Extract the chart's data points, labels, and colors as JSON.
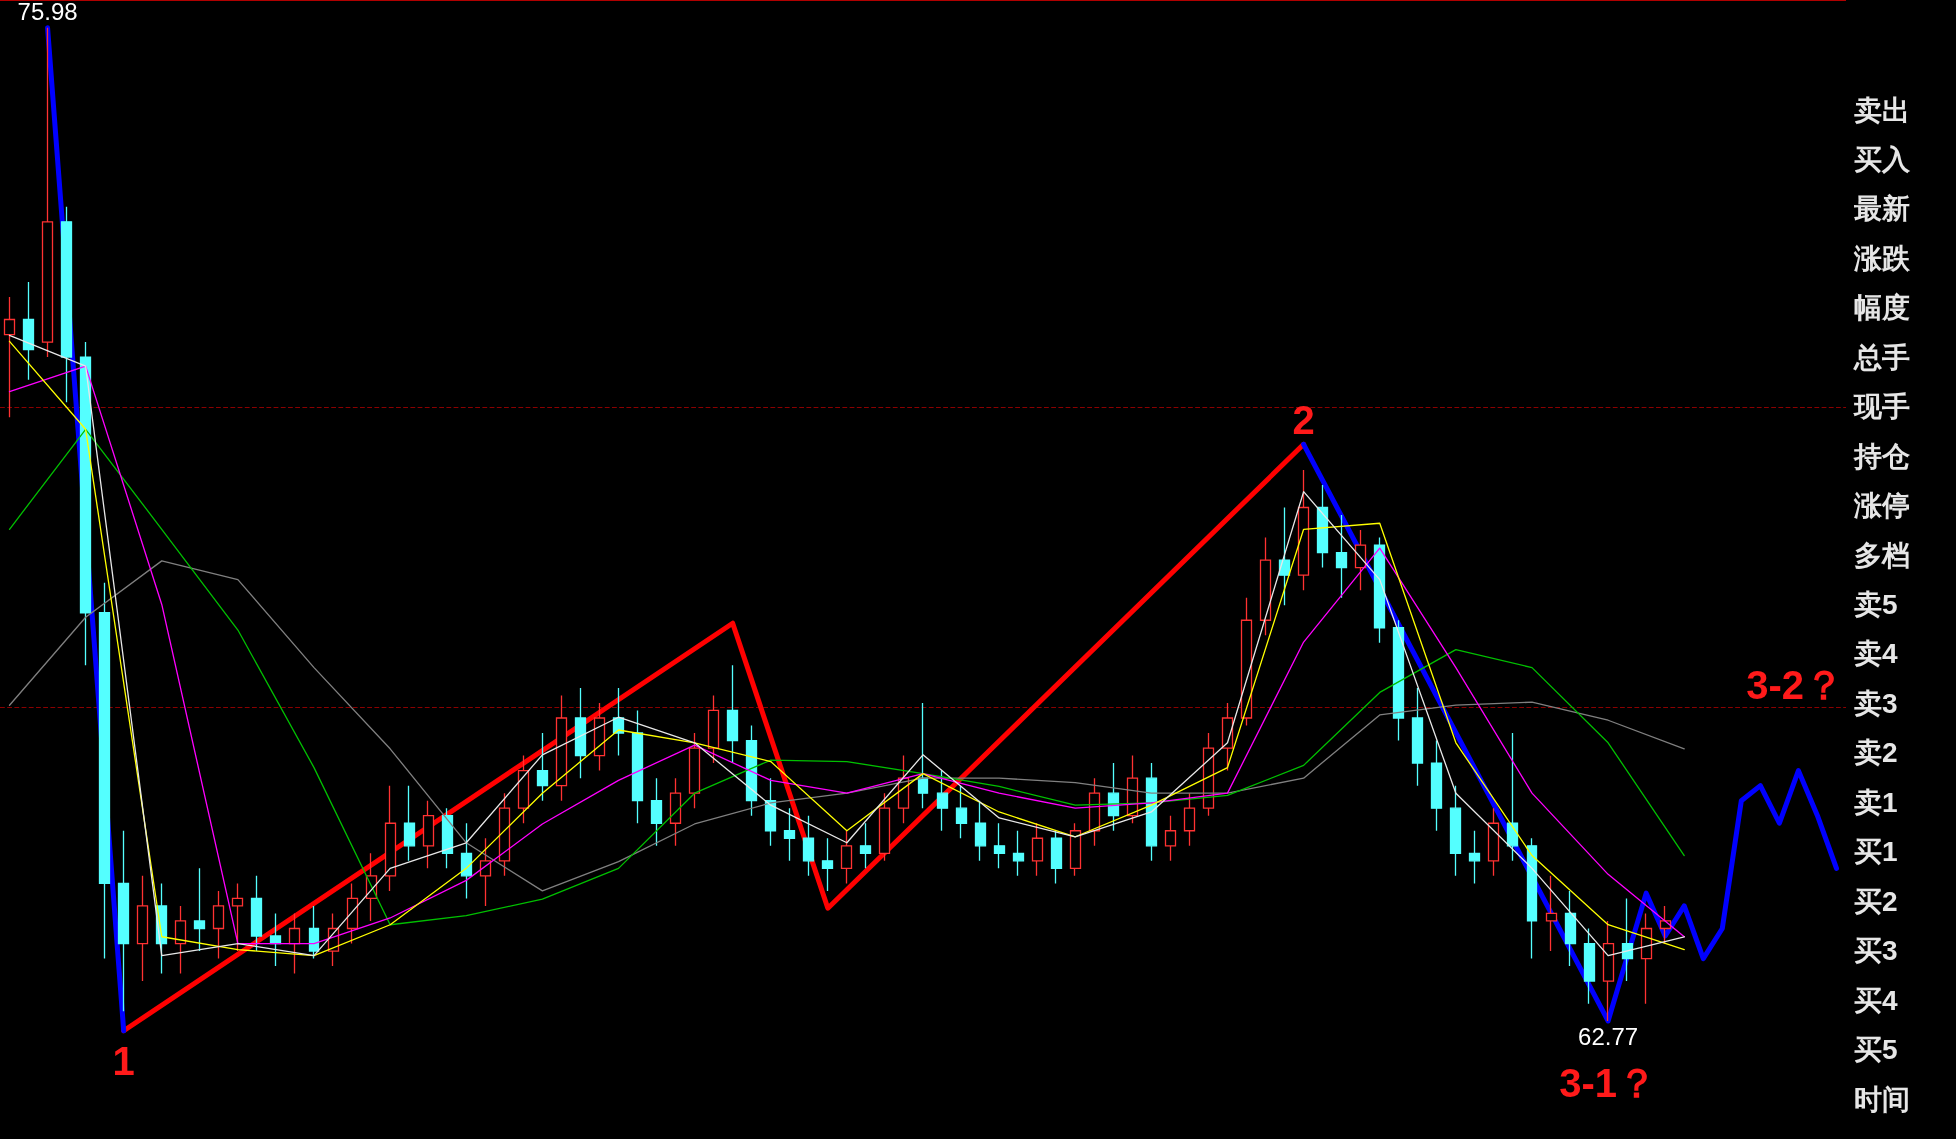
{
  "chart_data": {
    "type": "candlestick",
    "ylim": [
      61.2,
      76.35
    ],
    "tick_labels": false,
    "categories": [
      null,
      null,
      null,
      null,
      null,
      null,
      null,
      null,
      null,
      null,
      null,
      null,
      null,
      null,
      null,
      null,
      null,
      null,
      null,
      null,
      null,
      null,
      null,
      null,
      null,
      null,
      null,
      null,
      null,
      null,
      null,
      null,
      null,
      null,
      null,
      null,
      null,
      null,
      null,
      null,
      null,
      null,
      null,
      null,
      null,
      null,
      null,
      null,
      null,
      null,
      null,
      null,
      null,
      null,
      null,
      null,
      null,
      null,
      null,
      null,
      null,
      null,
      null,
      null,
      null,
      null,
      null,
      null,
      null,
      null,
      null,
      null,
      null,
      null,
      null,
      null,
      null,
      null,
      null,
      null,
      null,
      null,
      null,
      null,
      null,
      null,
      null,
      null,
      null,
      null,
      null,
      null,
      null,
      null,
      null,
      null,
      null
    ],
    "ohlc": [
      [
        71.9,
        72.4,
        70.8,
        72.1
      ],
      [
        72.1,
        72.6,
        71.3,
        71.7
      ],
      [
        71.8,
        75.98,
        71.6,
        73.4
      ],
      [
        73.4,
        73.6,
        71.0,
        71.6
      ],
      [
        71.6,
        71.8,
        67.5,
        68.2
      ],
      [
        68.2,
        68.6,
        63.6,
        64.6
      ],
      [
        64.6,
        65.3,
        62.9,
        63.8
      ],
      [
        63.8,
        64.7,
        63.3,
        64.3
      ],
      [
        64.3,
        64.6,
        63.4,
        63.8
      ],
      [
        63.8,
        64.3,
        63.4,
        64.1
      ],
      [
        64.1,
        64.8,
        63.7,
        64.0
      ],
      [
        64.0,
        64.5,
        63.6,
        64.3
      ],
      [
        64.3,
        64.6,
        63.7,
        64.4
      ],
      [
        64.4,
        64.7,
        63.7,
        63.9
      ],
      [
        63.9,
        64.2,
        63.5,
        63.8
      ],
      [
        63.8,
        64.2,
        63.4,
        64.0
      ],
      [
        64.0,
        64.3,
        63.6,
        63.7
      ],
      [
        63.7,
        64.2,
        63.5,
        64.0
      ],
      [
        64.0,
        64.6,
        63.8,
        64.4
      ],
      [
        64.4,
        65.0,
        64.1,
        64.7
      ],
      [
        64.7,
        65.9,
        64.5,
        65.4
      ],
      [
        65.4,
        65.9,
        64.9,
        65.1
      ],
      [
        65.1,
        65.7,
        64.8,
        65.5
      ],
      [
        65.5,
        65.6,
        64.8,
        65.0
      ],
      [
        65.0,
        65.4,
        64.4,
        64.7
      ],
      [
        64.7,
        65.2,
        64.3,
        64.9
      ],
      [
        64.9,
        65.8,
        64.7,
        65.6
      ],
      [
        65.6,
        66.3,
        65.4,
        66.1
      ],
      [
        66.1,
        66.6,
        65.7,
        65.9
      ],
      [
        65.9,
        67.1,
        65.7,
        66.8
      ],
      [
        66.8,
        67.2,
        66.0,
        66.3
      ],
      [
        66.3,
        67.0,
        66.1,
        66.8
      ],
      [
        66.8,
        67.2,
        66.3,
        66.6
      ],
      [
        66.6,
        66.9,
        65.4,
        65.7
      ],
      [
        65.7,
        66.0,
        65.1,
        65.4
      ],
      [
        65.4,
        66.0,
        65.1,
        65.8
      ],
      [
        65.8,
        66.6,
        65.6,
        66.4
      ],
      [
        66.4,
        67.1,
        66.2,
        66.9
      ],
      [
        66.9,
        67.5,
        66.2,
        66.5
      ],
      [
        66.5,
        66.7,
        65.5,
        65.7
      ],
      [
        65.7,
        66.0,
        65.1,
        65.3
      ],
      [
        65.3,
        65.6,
        64.9,
        65.2
      ],
      [
        65.2,
        65.5,
        64.7,
        64.9
      ],
      [
        64.9,
        65.2,
        64.5,
        64.8
      ],
      [
        64.8,
        65.3,
        64.6,
        65.1
      ],
      [
        65.1,
        65.4,
        64.8,
        65.0
      ],
      [
        65.0,
        65.8,
        64.9,
        65.6
      ],
      [
        65.6,
        66.3,
        65.4,
        66.0
      ],
      [
        66.0,
        67.0,
        65.6,
        65.8
      ],
      [
        65.8,
        66.1,
        65.3,
        65.6
      ],
      [
        65.6,
        65.9,
        65.2,
        65.4
      ],
      [
        65.4,
        65.7,
        64.9,
        65.1
      ],
      [
        65.1,
        65.4,
        64.8,
        65.0
      ],
      [
        65.0,
        65.3,
        64.7,
        64.9
      ],
      [
        64.9,
        65.4,
        64.7,
        65.2
      ],
      [
        65.2,
        65.3,
        64.6,
        64.8
      ],
      [
        64.8,
        65.4,
        64.7,
        65.3
      ],
      [
        65.3,
        66.0,
        65.1,
        65.8
      ],
      [
        65.8,
        66.2,
        65.3,
        65.5
      ],
      [
        65.5,
        66.3,
        65.4,
        66.0
      ],
      [
        66.0,
        66.2,
        64.9,
        65.1
      ],
      [
        65.1,
        65.5,
        64.9,
        65.3
      ],
      [
        65.3,
        65.8,
        65.1,
        65.6
      ],
      [
        65.6,
        66.6,
        65.5,
        66.4
      ],
      [
        66.4,
        67.0,
        66.1,
        66.8
      ],
      [
        66.8,
        68.4,
        66.7,
        68.1
      ],
      [
        68.1,
        69.2,
        67.9,
        68.9
      ],
      [
        68.9,
        69.6,
        68.3,
        68.7
      ],
      [
        68.7,
        70.1,
        68.5,
        69.6
      ],
      [
        69.6,
        69.9,
        68.8,
        69.0
      ],
      [
        69.0,
        69.5,
        68.4,
        68.8
      ],
      [
        68.8,
        69.3,
        68.5,
        69.1
      ],
      [
        69.1,
        69.2,
        67.8,
        68.0
      ],
      [
        68.0,
        68.1,
        66.5,
        66.8
      ],
      [
        66.8,
        67.2,
        65.9,
        66.2
      ],
      [
        66.2,
        66.5,
        65.3,
        65.6
      ],
      [
        65.6,
        65.9,
        64.7,
        65.0
      ],
      [
        65.0,
        65.3,
        64.6,
        64.9
      ],
      [
        64.9,
        65.6,
        64.7,
        65.4
      ],
      [
        65.4,
        66.6,
        64.9,
        65.1
      ],
      [
        65.1,
        65.2,
        63.6,
        64.1
      ],
      [
        64.1,
        64.7,
        63.7,
        64.2
      ],
      [
        64.2,
        64.5,
        63.5,
        63.8
      ],
      [
        63.8,
        64.0,
        63.0,
        63.3
      ],
      [
        63.3,
        64.1,
        62.77,
        63.8
      ],
      [
        63.8,
        64.4,
        63.3,
        63.6
      ],
      [
        63.6,
        64.2,
        63.0,
        64.0
      ],
      [
        64.0,
        64.3,
        63.8,
        64.1
      ],
      null,
      null,
      null,
      null,
      null,
      null,
      null,
      null,
      null
    ],
    "series": [
      {
        "type": "line",
        "color": "#808080",
        "values": [
          66.97,
          null,
          null,
          null,
          68.14,
          null,
          null,
          null,
          68.89,
          null,
          null,
          null,
          68.64,
          null,
          null,
          null,
          67.47,
          null,
          null,
          null,
          66.39,
          null,
          null,
          null,
          65.14,
          null,
          null,
          null,
          64.5,
          null,
          null,
          null,
          64.89,
          null,
          null,
          null,
          65.39,
          null,
          null,
          null,
          65.67,
          null,
          null,
          null,
          65.8,
          null,
          null,
          null,
          66.0,
          null,
          null,
          null,
          66.0,
          null,
          null,
          null,
          65.94,
          null,
          null,
          null,
          65.8,
          null,
          null,
          null,
          65.8,
          null,
          null,
          null,
          66.0,
          null,
          null,
          null,
          66.84,
          null,
          null,
          null,
          66.97,
          null,
          null,
          null,
          67.01,
          null,
          null,
          null,
          66.77,
          null,
          null,
          null,
          66.39,
          null,
          null,
          null,
          null,
          null,
          null,
          null,
          null
        ]
      },
      {
        "type": "line",
        "color": "#00c000",
        "values": [
          69.31,
          null,
          null,
          null,
          70.64,
          null,
          null,
          null,
          69.31,
          null,
          null,
          null,
          67.97,
          null,
          null,
          null,
          66.14,
          null,
          null,
          null,
          64.05,
          null,
          null,
          null,
          64.17,
          null,
          null,
          null,
          64.39,
          null,
          null,
          null,
          64.8,
          null,
          null,
          null,
          65.8,
          null,
          null,
          null,
          66.24,
          null,
          null,
          null,
          66.22,
          null,
          null,
          null,
          66.06,
          null,
          null,
          null,
          65.89,
          null,
          null,
          null,
          65.64,
          null,
          null,
          null,
          65.67,
          null,
          null,
          null,
          65.77,
          null,
          null,
          null,
          66.17,
          null,
          null,
          null,
          67.14,
          null,
          null,
          null,
          67.71,
          null,
          null,
          null,
          67.47,
          null,
          null,
          null,
          66.47,
          null,
          null,
          null,
          64.97,
          null,
          null,
          null,
          null,
          null,
          null,
          null,
          null
        ]
      },
      {
        "type": "line",
        "color": "#ff00ff",
        "values": [
          71.14,
          null,
          null,
          null,
          71.48,
          null,
          null,
          null,
          68.31,
          null,
          null,
          null,
          63.8,
          null,
          null,
          null,
          63.8,
          null,
          null,
          null,
          64.14,
          null,
          null,
          null,
          64.64,
          null,
          null,
          null,
          65.39,
          null,
          null,
          null,
          65.97,
          null,
          null,
          null,
          66.44,
          null,
          null,
          null,
          65.97,
          null,
          null,
          null,
          65.8,
          null,
          null,
          null,
          66.06,
          null,
          null,
          null,
          65.8,
          null,
          null,
          null,
          65.6,
          null,
          null,
          null,
          65.67,
          null,
          null,
          null,
          65.8,
          null,
          null,
          null,
          67.81,
          null,
          null,
          null,
          69.06,
          null,
          null,
          null,
          67.47,
          null,
          null,
          null,
          65.8,
          null,
          null,
          null,
          64.72,
          null,
          null,
          null,
          63.89,
          null,
          null,
          null,
          null,
          null,
          null,
          null,
          null
        ]
      },
      {
        "type": "line",
        "color": "#ffff00",
        "values": [
          71.81,
          null,
          null,
          null,
          70.64,
          null,
          null,
          null,
          63.89,
          null,
          null,
          null,
          63.72,
          null,
          null,
          null,
          63.64,
          null,
          null,
          null,
          64.05,
          null,
          null,
          null,
          64.8,
          null,
          null,
          null,
          65.8,
          null,
          null,
          null,
          66.64,
          null,
          null,
          null,
          66.47,
          null,
          null,
          null,
          66.22,
          null,
          null,
          null,
          65.3,
          null,
          null,
          null,
          66.06,
          null,
          null,
          null,
          65.55,
          null,
          null,
          null,
          65.22,
          null,
          null,
          null,
          65.64,
          null,
          null,
          null,
          66.14,
          null,
          null,
          null,
          69.31,
          null,
          null,
          null,
          69.39,
          null,
          null,
          null,
          66.47,
          null,
          null,
          null,
          64.97,
          null,
          null,
          null,
          64.05,
          null,
          null,
          null,
          63.72,
          null,
          null,
          null,
          null,
          null,
          null,
          null,
          null
        ]
      },
      {
        "type": "line",
        "color": "#e8e8e8",
        "values": [
          71.89,
          null,
          null,
          null,
          71.48,
          null,
          null,
          null,
          63.64,
          null,
          null,
          null,
          63.8,
          null,
          null,
          null,
          63.64,
          null,
          null,
          null,
          64.8,
          null,
          null,
          null,
          65.14,
          null,
          null,
          null,
          66.31,
          null,
          null,
          null,
          66.81,
          null,
          null,
          null,
          66.47,
          null,
          null,
          null,
          65.64,
          null,
          null,
          null,
          65.14,
          null,
          null,
          null,
          66.31,
          null,
          null,
          null,
          65.47,
          null,
          null,
          null,
          65.22,
          null,
          null,
          null,
          65.55,
          null,
          null,
          null,
          66.47,
          null,
          null,
          null,
          69.81,
          null,
          null,
          null,
          68.64,
          null,
          null,
          null,
          65.8,
          null,
          null,
          null,
          64.8,
          null,
          null,
          null,
          63.64,
          null,
          null,
          null,
          63.89,
          null,
          null,
          null,
          null,
          null,
          null,
          null,
          null
        ]
      },
      {
        "type": "line",
        "color": "#ff0000",
        "values": [
          null,
          null,
          null,
          null,
          null,
          null,
          62.64,
          null,
          null,
          null,
          null,
          null,
          null,
          null,
          null,
          null,
          null,
          null,
          null,
          null,
          null,
          null,
          null,
          null,
          null,
          null,
          null,
          null,
          null,
          null,
          null,
          null,
          null,
          null,
          null,
          null,
          null,
          null,
          68.06,
          null,
          null,
          null,
          null,
          64.27,
          null,
          null,
          null,
          null,
          null,
          null,
          null,
          null,
          null,
          null,
          null,
          null,
          null,
          null,
          null,
          null,
          null,
          null,
          null,
          null,
          null,
          null,
          null,
          null,
          70.44,
          null,
          null,
          null,
          null,
          null,
          null,
          null,
          null,
          null,
          null,
          null,
          null,
          null,
          null,
          null,
          null,
          null,
          null,
          null,
          null,
          null,
          null,
          null,
          null,
          null,
          null,
          null,
          null
        ]
      },
      {
        "type": "line",
        "color": "#0000ff",
        "values": [
          null,
          null,
          75.98,
          null,
          null,
          null,
          62.64,
          null,
          null,
          null,
          null,
          null,
          null,
          null,
          null,
          null,
          null,
          null,
          null,
          null,
          null,
          null,
          null,
          null,
          null,
          null,
          null,
          null,
          null,
          null,
          null,
          null,
          null,
          null,
          null,
          null,
          null,
          null,
          null,
          null,
          null,
          null,
          null,
          null,
          null,
          null,
          null,
          null,
          null,
          null,
          null,
          null,
          null,
          null,
          null,
          null,
          null,
          null,
          null,
          null,
          null,
          null,
          null,
          null,
          null,
          null,
          null,
          null,
          null,
          null,
          null,
          null,
          null,
          null,
          null,
          null,
          null,
          null,
          null,
          null,
          null,
          null,
          null,
          null,
          null,
          null,
          null,
          null,
          null,
          null,
          null,
          null,
          null,
          null,
          null,
          null,
          null
        ]
      },
      {
        "type": "line",
        "color": "#0000ff",
        "values": [
          null,
          null,
          null,
          null,
          null,
          null,
          null,
          null,
          null,
          null,
          null,
          null,
          null,
          null,
          null,
          null,
          null,
          null,
          null,
          null,
          null,
          null,
          null,
          null,
          null,
          null,
          null,
          null,
          null,
          null,
          null,
          null,
          null,
          null,
          null,
          null,
          null,
          null,
          null,
          null,
          null,
          null,
          null,
          null,
          null,
          null,
          null,
          null,
          null,
          null,
          null,
          null,
          null,
          null,
          null,
          null,
          null,
          null,
          null,
          null,
          null,
          null,
          null,
          null,
          null,
          null,
          null,
          null,
          70.44,
          null,
          null,
          null,
          null,
          null,
          null,
          null,
          null,
          null,
          null,
          null,
          null,
          null,
          null,
          null,
          62.77,
          null,
          64.47,
          63.9,
          64.3,
          63.6,
          64.0,
          65.7,
          65.9,
          65.4,
          66.1,
          65.5,
          64.8
        ]
      }
    ],
    "ref_lines": [
      {
        "axis": "y",
        "value": 76.35,
        "color": "#b00000",
        "line_style": "solid"
      },
      {
        "axis": "y",
        "value": 70.93,
        "color": "#8b0000",
        "line_style": "dashed"
      },
      {
        "axis": "y",
        "value": 66.94,
        "color": "#8b0000",
        "line_style": "dashed",
        "label": "3-2？"
      }
    ],
    "annotations": [
      {
        "text": "75.98",
        "y": 75.98
      },
      {
        "text": "62.77",
        "y": 62.77
      },
      {
        "text": "1",
        "y": 62.64
      },
      {
        "text": "2",
        "y": 70.44
      },
      {
        "text": "3-1？",
        "y": 62.77
      },
      "卖出",
      "买入",
      "最新",
      "涨跌",
      "幅度",
      "总手",
      "现手",
      "持仓",
      "涨停",
      "多档",
      "卖5",
      "卖4",
      "卖3",
      "卖2",
      "卖1",
      "买1",
      "买2",
      "买3",
      "买4",
      "买5",
      "时间"
    ]
  }
}
